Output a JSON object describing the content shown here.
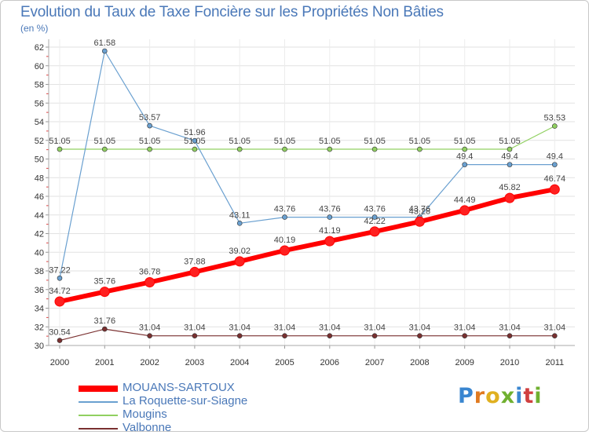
{
  "chart_data": {
    "type": "line",
    "title": "Evolution du Taux de Taxe Foncière sur les Propriétés Non Bâties",
    "ylabel": "(en %)",
    "xlabel": "",
    "categories": [
      "2000",
      "2001",
      "2002",
      "2003",
      "2004",
      "2005",
      "2006",
      "2007",
      "2008",
      "2009",
      "2010",
      "2011"
    ],
    "ylim": [
      30,
      62
    ],
    "yticks": [
      "30",
      "32",
      "34",
      "36",
      "38",
      "40",
      "42",
      "44",
      "46",
      "48",
      "50",
      "52",
      "54",
      "56",
      "58",
      "60",
      "62"
    ],
    "series": [
      {
        "name": "MOUANS-SARTOUX",
        "color": "#ff0000",
        "values": [
          34.72,
          35.76,
          36.78,
          37.88,
          39.02,
          40.19,
          41.19,
          42.22,
          43.28,
          44.49,
          45.82,
          46.74
        ],
        "labels": [
          "34.72",
          "35.76",
          "36.78",
          "37.88",
          "39.02",
          "40.19",
          "41.19",
          "42.22",
          "43.28",
          "44.49",
          "45.82",
          "46.74"
        ]
      },
      {
        "name": "La Roquette-sur-Siagne",
        "color": "#6aa0d0",
        "values": [
          37.22,
          61.58,
          53.57,
          51.96,
          43.11,
          43.76,
          43.76,
          43.76,
          43.76,
          49.4,
          49.4,
          49.4
        ],
        "labels": [
          "37.22",
          "61.58",
          "53.57",
          "51.96",
          "43.11",
          "43.76",
          "43.76",
          "43.76",
          "43.76",
          "49.4",
          "49.4",
          "49.4"
        ]
      },
      {
        "name": "Mougins",
        "color": "#90d060",
        "values": [
          51.05,
          51.05,
          51.05,
          51.05,
          51.05,
          51.05,
          51.05,
          51.05,
          51.05,
          51.05,
          51.05,
          53.53
        ],
        "labels": [
          "51.05",
          "51.05",
          "51.05",
          "51.05",
          "51.05",
          "51.05",
          "51.05",
          "51.05",
          "51.05",
          "51.05",
          "51.05",
          "53.53"
        ]
      },
      {
        "name": "Valbonne",
        "color": "#7a3030",
        "values": [
          30.54,
          31.76,
          31.04,
          31.04,
          31.04,
          31.04,
          31.04,
          31.04,
          31.04,
          31.04,
          31.04,
          31.04
        ],
        "labels": [
          "30.54",
          "31.76",
          "31.04",
          "31.04",
          "31.04",
          "31.04",
          "31.04",
          "31.04",
          "31.04",
          "31.04",
          "31.04",
          "31.04"
        ]
      }
    ],
    "legend_position": "bottom-left"
  },
  "logo": {
    "text": "Proxiti",
    "letters": [
      "P",
      "r",
      "o",
      "x",
      "i",
      "t",
      "i"
    ]
  }
}
